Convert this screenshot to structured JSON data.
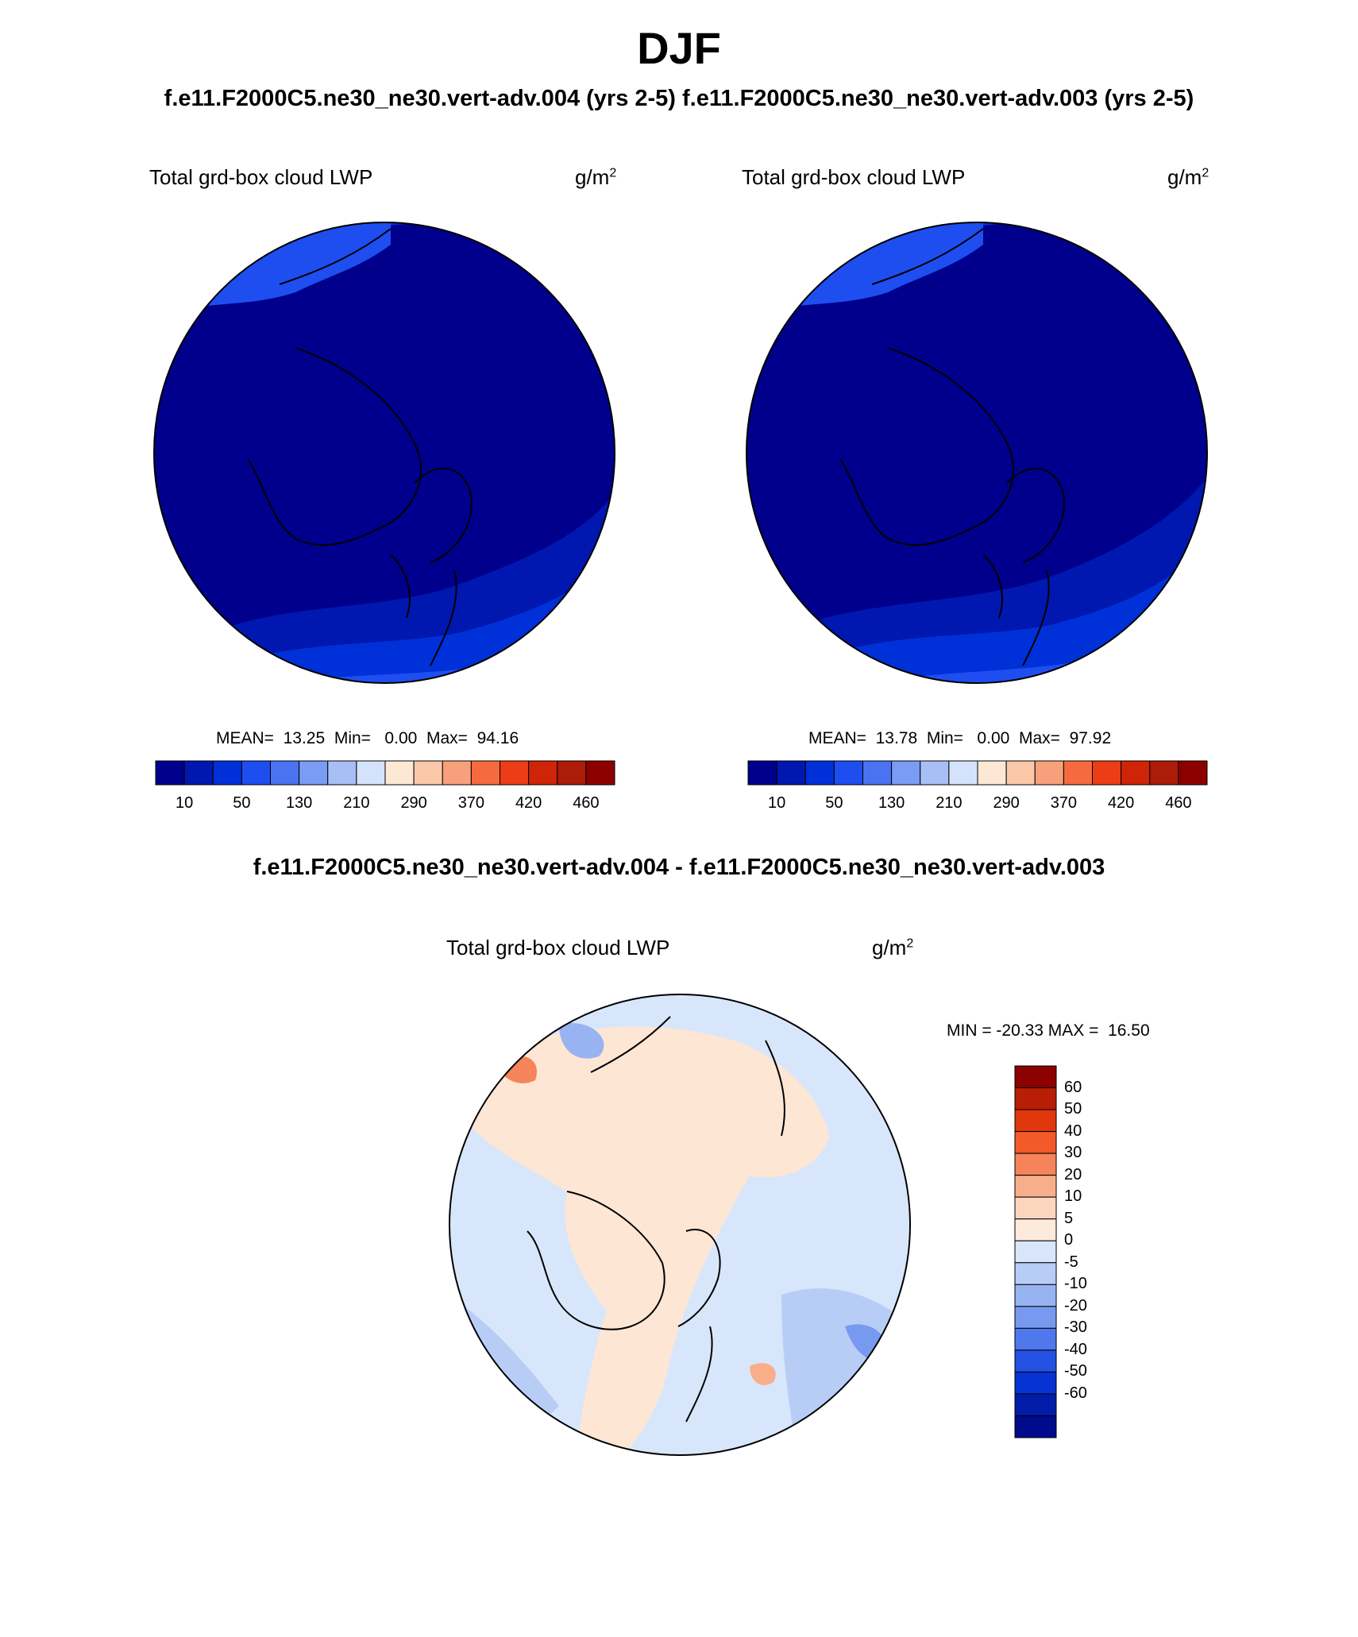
{
  "title": "DJF",
  "top_header": "f.e11.F2000C5.ne30_ne30.vert-adv.004 (yrs 2-5)  f.e11.F2000C5.ne30_ne30.vert-adv.003 (yrs 2-5)",
  "diff_header": "f.e11.F2000C5.ne30_ne30.vert-adv.004 - f.e11.F2000C5.ne30_ne30.vert-adv.003",
  "colors": {
    "abs_colorbar": [
      "#00008c",
      "#0018b0",
      "#0030d8",
      "#1e4ef0",
      "#4a73f2",
      "#7a9cf4",
      "#a8bff6",
      "#d4e2fb",
      "#fde8d6",
      "#fcc8aa",
      "#f8a07c",
      "#f66a40",
      "#ec3c18",
      "#d02408",
      "#ac1c08",
      "#8c0000"
    ],
    "diff_colorbar": [
      "#8c0000",
      "#b81e06",
      "#e0380c",
      "#f25a2a",
      "#f5845a",
      "#f8ae8a",
      "#fbd6bd",
      "#fdeadb",
      "#d8e6fb",
      "#b8cdf6",
      "#97b3f2",
      "#7799ef",
      "#4f78ec",
      "#2450e4",
      "#0732d4",
      "#001ca8",
      "#000a8c"
    ],
    "map_land_outline": "#000000",
    "abs_map_main": "#00008c",
    "diff_map_main": "#fde6d4"
  },
  "panels": [
    {
      "name": "f.e11.F2000C5.ne30_ne30.vert-adv.004",
      "left_label": "Total grd-box cloud LWP",
      "unit_base": "g/m",
      "unit_sup": "2",
      "stats": "MEAN=  13.25  Min=   0.00  Max=  94.16",
      "colorbar_ticks": [
        "10",
        "50",
        "130",
        "210",
        "290",
        "370",
        "420",
        "460"
      ]
    },
    {
      "name": "f.e11.F2000C5.ne30_ne30.vert-adv.003",
      "left_label": "Total grd-box cloud LWP",
      "unit_base": "g/m",
      "unit_sup": "2",
      "stats": "MEAN=  13.78  Min=   0.00  Max=  97.92",
      "colorbar_ticks": [
        "10",
        "50",
        "130",
        "210",
        "290",
        "370",
        "420",
        "460"
      ]
    }
  ],
  "diff_panel": {
    "left_label": "Total grd-box cloud LWP",
    "unit_base": "g/m",
    "unit_sup": "2",
    "minmax": "MIN = -20.33 MAX =  16.50",
    "colorbar_ticks": [
      "60",
      "50",
      "40",
      "30",
      "20",
      "10",
      "5",
      "0",
      "-5",
      "-10",
      "-20",
      "-30",
      "-40",
      "-50",
      "-60"
    ]
  }
}
